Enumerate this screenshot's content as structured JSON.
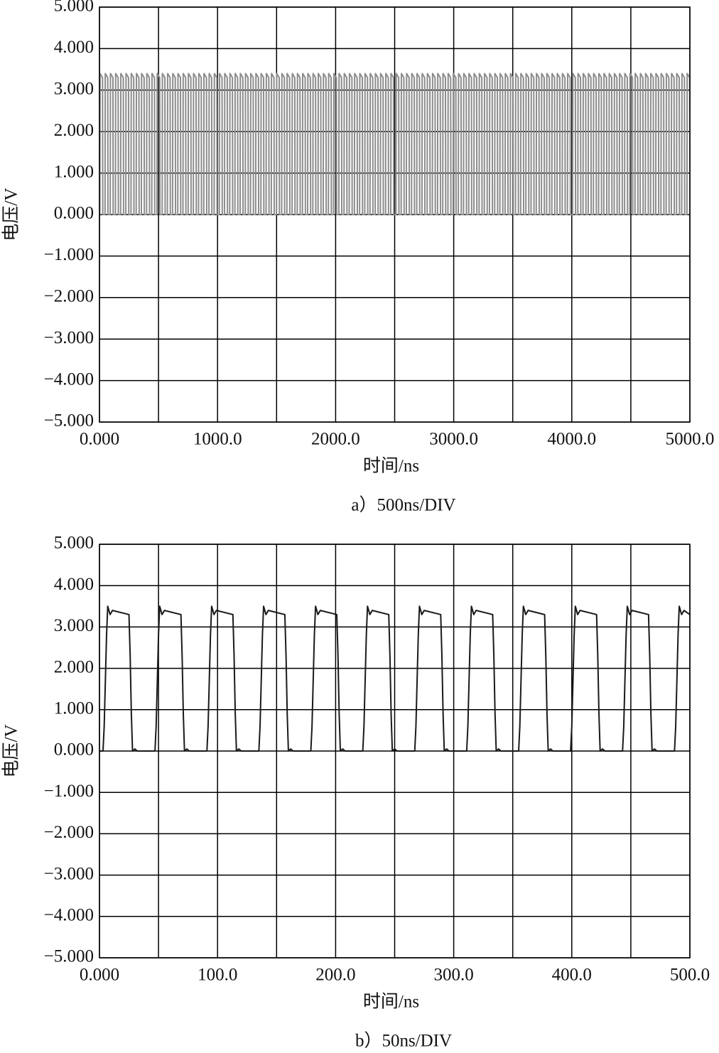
{
  "chart_data": [
    {
      "type": "line",
      "ylabel": "电压/V",
      "xlabel": "时间/ns",
      "caption": "a）500ns/DIV",
      "color": "#8c8c8c",
      "xlim": [
        0,
        5000
      ],
      "ylim": [
        -5,
        5
      ],
      "xticks": [
        {
          "value": 0,
          "label": "0.000"
        },
        {
          "value": 1000,
          "label": "1000.0"
        },
        {
          "value": 2000,
          "label": "2000.0"
        },
        {
          "value": 3000,
          "label": "3000.0"
        },
        {
          "value": 4000,
          "label": "4000.0"
        },
        {
          "value": 5000,
          "label": "5000.0"
        }
      ],
      "xgrid": [
        0,
        500,
        1000,
        1500,
        2000,
        2500,
        3000,
        3500,
        4000,
        4500,
        5000
      ],
      "yticks": [
        {
          "value": 5,
          "label": "5.000"
        },
        {
          "value": 4,
          "label": "4.000"
        },
        {
          "value": 3,
          "label": "3.000"
        },
        {
          "value": 2,
          "label": "2.000"
        },
        {
          "value": 1,
          "label": "1.000"
        },
        {
          "value": 0,
          "label": "0.000"
        },
        {
          "value": -1,
          "label": "−1.000"
        },
        {
          "value": -2,
          "label": "−2.000"
        },
        {
          "value": -3,
          "label": "−3.000"
        },
        {
          "value": -4,
          "label": "−4.000"
        },
        {
          "value": -5,
          "label": "−5.000"
        }
      ],
      "x": [
        3,
        5,
        26,
        28,
        47,
        49,
        70,
        72,
        91,
        93,
        114,
        116,
        135,
        137,
        158,
        160,
        179,
        181,
        202,
        204,
        223,
        225,
        246,
        248,
        267,
        269,
        290,
        292,
        311,
        313,
        334,
        336,
        355,
        357,
        378,
        380,
        399,
        401,
        422,
        424,
        443,
        445,
        466,
        468,
        487,
        489,
        510,
        512,
        531,
        533,
        554,
        556,
        575,
        577,
        598,
        600,
        619,
        621,
        642,
        644,
        663,
        665,
        686,
        688,
        707,
        709,
        730,
        732,
        751,
        753,
        774,
        776,
        795,
        797,
        818,
        820,
        839,
        841,
        862,
        864,
        883,
        885,
        906,
        908,
        927,
        929,
        950,
        952,
        971,
        973,
        994,
        996,
        1015,
        1017,
        1038,
        1040,
        1059,
        1061,
        1082,
        1084,
        1103,
        1105,
        1126,
        1128,
        1147,
        1149,
        1170,
        1172,
        1191,
        1193,
        1214,
        1216,
        1235,
        1237,
        1258,
        1260,
        1279,
        1281,
        1302,
        1304,
        1323,
        1325,
        1346,
        1348,
        1367,
        1369,
        1390,
        1392,
        1411,
        1413,
        1434,
        1436,
        1455,
        1457,
        1478,
        1480,
        1499,
        1501,
        1522,
        1524,
        1543,
        1545,
        1566,
        1568,
        1587,
        1589,
        1610,
        1612,
        1631,
        1633,
        1654,
        1656,
        1675,
        1677,
        1698,
        1700,
        1719,
        1721,
        1742,
        1744,
        1763,
        1765,
        1786,
        1788,
        1807,
        1809,
        1830,
        1832,
        1851,
        1853,
        1874,
        1876,
        1895,
        1897,
        1918,
        1920,
        1939,
        1941,
        1962,
        1964,
        1983,
        1985,
        2006,
        2008,
        2027,
        2029,
        2050,
        2052,
        2071,
        2073,
        2094,
        2096,
        2115,
        2117,
        2138,
        2140,
        2159,
        2161,
        2182,
        2184,
        2203,
        2205,
        2226,
        2228,
        2247,
        2249,
        2270,
        2272,
        2291,
        2293,
        2314,
        2316,
        2335,
        2337,
        2358,
        2360,
        2379,
        2381,
        2402,
        2404,
        2423,
        2425,
        2446,
        2448,
        2467,
        2469,
        2490,
        2492,
        2511,
        2513,
        2534,
        2536,
        2555,
        2557,
        2578,
        2580,
        2599,
        2601,
        2622,
        2624,
        2643,
        2645,
        2666,
        2668,
        2687,
        2689,
        2710,
        2712,
        2731,
        2733,
        2754,
        2756,
        2775,
        2777,
        2798,
        2800,
        2819,
        2821,
        2842,
        2844,
        2863,
        2865,
        2886,
        2888,
        2907,
        2909,
        2930,
        2932,
        2951,
        2953,
        2974,
        2976,
        2995,
        2997,
        3018,
        3020,
        3039,
        3041,
        3062,
        3064,
        3083,
        3085,
        3106,
        3108,
        3127,
        3129,
        3150,
        3152,
        3171,
        3173,
        3194,
        3196,
        3215,
        3217,
        3238,
        3240,
        3259,
        3261,
        3282,
        3284,
        3303,
        3305,
        3326,
        3328,
        3347,
        3349,
        3370,
        3372,
        3391,
        3393,
        3414,
        3416,
        3435,
        3437,
        3458,
        3460,
        3479,
        3481,
        3502,
        3504,
        3523,
        3525,
        3546,
        3548,
        3567,
        3569,
        3590,
        3592,
        3611,
        3613,
        3634,
        3636,
        3655,
        3657,
        3678,
        3680,
        3699,
        3701,
        3722,
        3724,
        3743,
        3745,
        3766,
        3768,
        3787,
        3789,
        3810,
        3812,
        3831,
        3833,
        3854,
        3856,
        3875,
        3877,
        3898,
        3900,
        3919,
        3921,
        3942,
        3944,
        3963,
        3965,
        3986,
        3988,
        4007,
        4009,
        4030,
        4032,
        4051,
        4053,
        4074,
        4076,
        4095,
        4097,
        4118,
        4120,
        4139,
        4141,
        4162,
        4164,
        4183,
        4185,
        4206,
        4208,
        4227,
        4229,
        4250,
        4252,
        4271,
        4273,
        4294,
        4296,
        4315,
        4317,
        4338,
        4340,
        4359,
        4361,
        4382,
        4384,
        4403,
        4405,
        4426,
        4428,
        4447,
        4449,
        4470,
        4472,
        4491,
        4493,
        4514,
        4516,
        4535,
        4537,
        4558,
        4560,
        4579,
        4581,
        4602,
        4604,
        4623,
        4625,
        4646,
        4648,
        4667,
        4669,
        4690,
        4692,
        4711,
        4713,
        4734,
        4736,
        4755,
        4757,
        4778,
        4780,
        4799,
        4801,
        4822,
        4824,
        4843,
        4845,
        4866,
        4868,
        4887,
        4889,
        4910,
        4912,
        4931,
        4933,
        4954,
        4956,
        4975,
        4977,
        4998,
        5000
      ],
      "values": [
        0,
        3.4,
        3.3,
        0,
        0,
        3.4,
        3.3,
        0,
        0,
        3.4,
        3.3,
        0,
        0,
        3.4,
        3.3,
        0,
        0,
        3.4,
        3.3,
        0,
        0,
        3.4,
        3.3,
        0,
        0,
        3.4,
        3.3,
        0,
        0,
        3.4,
        3.3,
        0,
        0,
        3.4,
        3.3,
        0,
        0,
        3.4,
        3.3,
        0,
        0,
        3.4,
        3.3,
        0,
        0,
        3.4,
        3.3,
        0,
        0,
        3.4,
        3.3,
        0,
        0,
        3.4,
        3.3,
        0,
        0,
        3.4,
        3.3,
        0,
        0,
        3.4,
        3.3,
        0,
        0,
        3.4,
        3.3,
        0,
        0,
        3.4,
        3.3,
        0,
        0,
        3.4,
        3.3,
        0,
        0,
        3.4,
        3.3,
        0,
        0,
        3.4,
        3.3,
        0,
        0,
        3.4,
        3.3,
        0,
        0,
        3.4,
        3.3,
        0,
        0,
        3.4,
        3.3,
        0,
        0,
        3.4,
        3.3,
        0,
        0,
        3.4,
        3.3,
        0,
        0,
        3.4,
        3.3,
        0,
        0,
        3.4,
        3.3,
        0,
        0,
        3.4,
        3.3,
        0,
        0,
        3.4,
        3.3,
        0,
        0,
        3.4,
        3.3,
        0,
        0,
        3.4,
        3.3,
        0,
        0,
        3.4,
        3.3,
        0,
        0,
        3.4,
        3.3,
        0,
        0,
        3.4,
        3.3,
        0,
        0,
        3.4,
        3.3,
        0,
        0,
        3.4,
        3.3,
        0,
        0,
        3.4,
        3.3,
        0,
        0,
        3.4,
        3.3,
        0,
        0,
        3.4,
        3.3,
        0,
        0,
        3.4,
        3.3,
        0,
        0,
        3.4,
        3.3,
        0,
        0,
        3.4,
        3.3,
        0,
        0,
        3.4,
        3.3,
        0,
        0,
        3.4,
        3.3,
        0,
        0,
        3.4,
        3.3,
        0,
        0,
        3.4,
        3.3,
        0,
        0,
        3.4,
        3.3,
        0,
        0,
        3.4,
        3.3,
        0,
        0,
        3.4,
        3.3,
        0,
        0,
        3.4,
        3.3,
        0,
        0,
        3.4,
        3.3,
        0,
        0,
        3.4,
        3.3,
        0,
        0,
        3.4,
        3.3,
        0,
        0,
        3.4,
        3.3,
        0,
        0,
        3.4,
        3.3,
        0,
        0,
        3.4,
        3.3,
        0,
        0,
        3.4,
        3.3,
        0,
        0,
        3.4,
        3.3,
        0,
        0,
        3.4,
        3.3,
        0,
        0,
        3.4,
        3.3,
        0,
        0,
        3.4,
        3.3,
        0,
        0,
        3.4,
        3.3,
        0,
        0,
        3.4,
        3.3,
        0,
        0,
        3.4,
        3.3,
        0,
        0,
        3.4,
        3.3,
        0,
        0,
        3.4,
        3.3,
        0,
        0,
        3.4,
        3.3,
        0,
        0,
        3.4,
        3.3,
        0,
        0,
        3.4,
        3.3,
        0,
        0,
        3.4,
        3.3,
        0,
        0,
        3.4,
        3.3,
        0,
        0,
        3.4,
        3.3,
        0,
        0,
        3.4,
        3.3,
        0,
        0,
        3.4,
        3.3,
        0,
        0,
        3.4,
        3.3,
        0,
        0,
        3.4,
        3.3,
        0,
        0,
        3.4,
        3.3,
        0,
        0,
        3.4,
        3.3,
        0,
        0,
        3.4,
        3.3,
        0,
        0,
        3.4,
        3.3,
        0,
        0,
        3.4,
        3.3,
        0,
        0,
        3.4,
        3.3,
        0,
        0,
        3.4,
        3.3,
        0,
        0,
        3.4,
        3.3,
        0,
        0,
        3.4,
        3.3,
        0,
        0,
        3.4,
        3.3,
        0,
        0,
        3.4,
        3.3,
        0,
        0,
        3.4,
        3.3,
        0,
        0,
        3.4,
        3.3,
        0,
        0,
        3.4,
        3.3,
        0,
        0,
        3.4,
        3.3,
        0,
        0,
        3.4,
        3.3,
        0,
        0,
        3.4,
        3.3,
        0,
        0,
        3.4,
        3.3,
        0,
        0,
        3.4,
        3.3,
        0,
        0,
        3.4,
        3.3,
        0,
        0,
        3.4,
        3.3,
        0,
        0,
        3.4,
        3.3,
        0,
        0,
        3.4,
        3.3,
        0,
        0,
        3.4,
        3.3,
        0,
        0,
        3.4,
        3.3,
        0,
        0,
        3.4,
        3.3,
        0,
        0,
        3.4,
        3.3,
        0,
        0,
        3.4,
        3.3,
        0,
        0,
        3.4,
        3.3,
        0,
        0,
        3.4,
        3.3,
        0,
        0,
        3.4,
        3.3,
        0,
        0,
        3.4,
        3.3,
        0,
        0,
        3.4,
        3.3,
        0,
        0,
        3.4,
        3.3,
        0,
        0,
        3.4,
        3.3,
        0,
        0,
        3.4,
        3.3,
        0,
        0,
        3.4,
        3.3,
        0
      ]
    },
    {
      "type": "line",
      "ylabel": "电压/V",
      "xlabel": "时间/ns",
      "caption": "b）50ns/DIV",
      "color": "#1a1a1a",
      "xlim": [
        0,
        500
      ],
      "ylim": [
        -5,
        5
      ],
      "xticks": [
        {
          "value": 0,
          "label": "0.000"
        },
        {
          "value": 100,
          "label": "100.0"
        },
        {
          "value": 200,
          "label": "200.0"
        },
        {
          "value": 300,
          "label": "300.0"
        },
        {
          "value": 400,
          "label": "400.0"
        },
        {
          "value": 500,
          "label": "500.0"
        }
      ],
      "xgrid": [
        0,
        50,
        100,
        150,
        200,
        250,
        300,
        350,
        400,
        450,
        500
      ],
      "yticks": [
        {
          "value": 5,
          "label": "5.000"
        },
        {
          "value": 4,
          "label": "4.000"
        },
        {
          "value": 3,
          "label": "3.000"
        },
        {
          "value": 2,
          "label": "2.000"
        },
        {
          "value": 1,
          "label": "1.000"
        },
        {
          "value": 0,
          "label": "0.000"
        },
        {
          "value": -1,
          "label": "−1.000"
        },
        {
          "value": -2,
          "label": "−2.000"
        },
        {
          "value": -3,
          "label": "−3.000"
        },
        {
          "value": -4,
          "label": "−4.000"
        },
        {
          "value": -5,
          "label": "−5.000"
        }
      ],
      "x": [
        0,
        3,
        4,
        6,
        7,
        9,
        11,
        25,
        26,
        27,
        28,
        30,
        32,
        47,
        48,
        50,
        51,
        53,
        55,
        69,
        70,
        71,
        72,
        74,
        76,
        91,
        92,
        94,
        95,
        97,
        99,
        113,
        114,
        115,
        116,
        118,
        120,
        135,
        136,
        138,
        139,
        141,
        143,
        157,
        158,
        159,
        160,
        162,
        164,
        179,
        180,
        182,
        183,
        185,
        187,
        201,
        202,
        203,
        204,
        206,
        208,
        223,
        224,
        226,
        227,
        229,
        231,
        245,
        246,
        247,
        248,
        250,
        252,
        267,
        268,
        270,
        271,
        273,
        275,
        289,
        290,
        291,
        292,
        294,
        296,
        311,
        312,
        314,
        315,
        317,
        319,
        333,
        334,
        335,
        336,
        338,
        340,
        355,
        356,
        358,
        359,
        361,
        363,
        377,
        378,
        379,
        380,
        382,
        384,
        399,
        400,
        402,
        403,
        405,
        407,
        421,
        422,
        423,
        424,
        426,
        428,
        443,
        444,
        446,
        447,
        449,
        451,
        465,
        466,
        467,
        468,
        470,
        472,
        487,
        488,
        490,
        491,
        493,
        495,
        500
      ],
      "values": [
        0,
        0,
        0.6,
        2.8,
        3.5,
        3.3,
        3.4,
        3.3,
        2.3,
        0.9,
        0,
        0.05,
        0,
        0,
        0.6,
        2.8,
        3.5,
        3.3,
        3.4,
        3.3,
        2.3,
        0.9,
        0,
        0.05,
        0,
        0,
        0.6,
        2.8,
        3.5,
        3.3,
        3.4,
        3.3,
        2.3,
        0.9,
        0,
        0.05,
        0,
        0,
        0.6,
        2.8,
        3.5,
        3.3,
        3.4,
        3.3,
        2.3,
        0.9,
        0,
        0.05,
        0,
        0,
        0.6,
        2.8,
        3.5,
        3.3,
        3.4,
        3.3,
        2.3,
        0.9,
        0,
        0.05,
        0,
        0,
        0.6,
        2.8,
        3.5,
        3.3,
        3.4,
        3.3,
        2.3,
        0.9,
        0,
        0.05,
        0,
        0,
        0.6,
        2.8,
        3.5,
        3.3,
        3.4,
        3.3,
        2.3,
        0.9,
        0,
        0.05,
        0,
        0,
        0.6,
        2.8,
        3.5,
        3.3,
        3.4,
        3.3,
        2.3,
        0.9,
        0,
        0.05,
        0,
        0,
        0.6,
        2.8,
        3.5,
        3.3,
        3.4,
        3.3,
        2.3,
        0.9,
        0,
        0.05,
        0,
        0,
        0.6,
        2.8,
        3.5,
        3.3,
        3.4,
        3.3,
        2.3,
        0.9,
        0,
        0.05,
        0,
        0,
        0.6,
        2.8,
        3.5,
        3.3,
        3.4,
        3.3,
        2.3,
        0.9,
        0,
        0.05,
        0,
        0,
        0.6,
        2.8,
        3.5,
        3.3,
        3.4,
        3.3
      ]
    }
  ]
}
